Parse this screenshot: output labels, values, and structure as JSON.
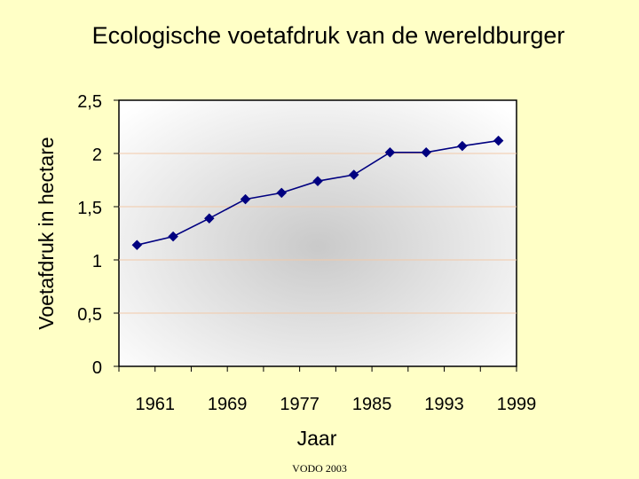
{
  "chart_data": {
    "type": "line",
    "title": "Ecologische voetafdruk van de wereldburger",
    "xlabel": "Jaar",
    "ylabel": "Voetafdruk in hectare",
    "x_tick_labels": [
      "1961",
      "1969",
      "1977",
      "1985",
      "1993",
      "1999"
    ],
    "y_tick_labels": [
      "0",
      "0,5",
      "1",
      "1,5",
      "2",
      "2,5"
    ],
    "y_ticks": [
      0,
      0.5,
      1,
      1.5,
      2,
      2.5
    ],
    "ylim": [
      0,
      2.5
    ],
    "grid": true,
    "legend": "none",
    "series": [
      {
        "values": [
          1.14,
          1.22,
          1.39,
          1.57,
          1.63,
          1.74,
          1.8,
          2.01,
          2.01,
          2.07,
          2.12
        ]
      }
    ],
    "colors": {
      "line": "#000080",
      "marker": "#000080",
      "grid": "#F2C9A8"
    }
  },
  "footer": {
    "source": "VODO 2003"
  }
}
